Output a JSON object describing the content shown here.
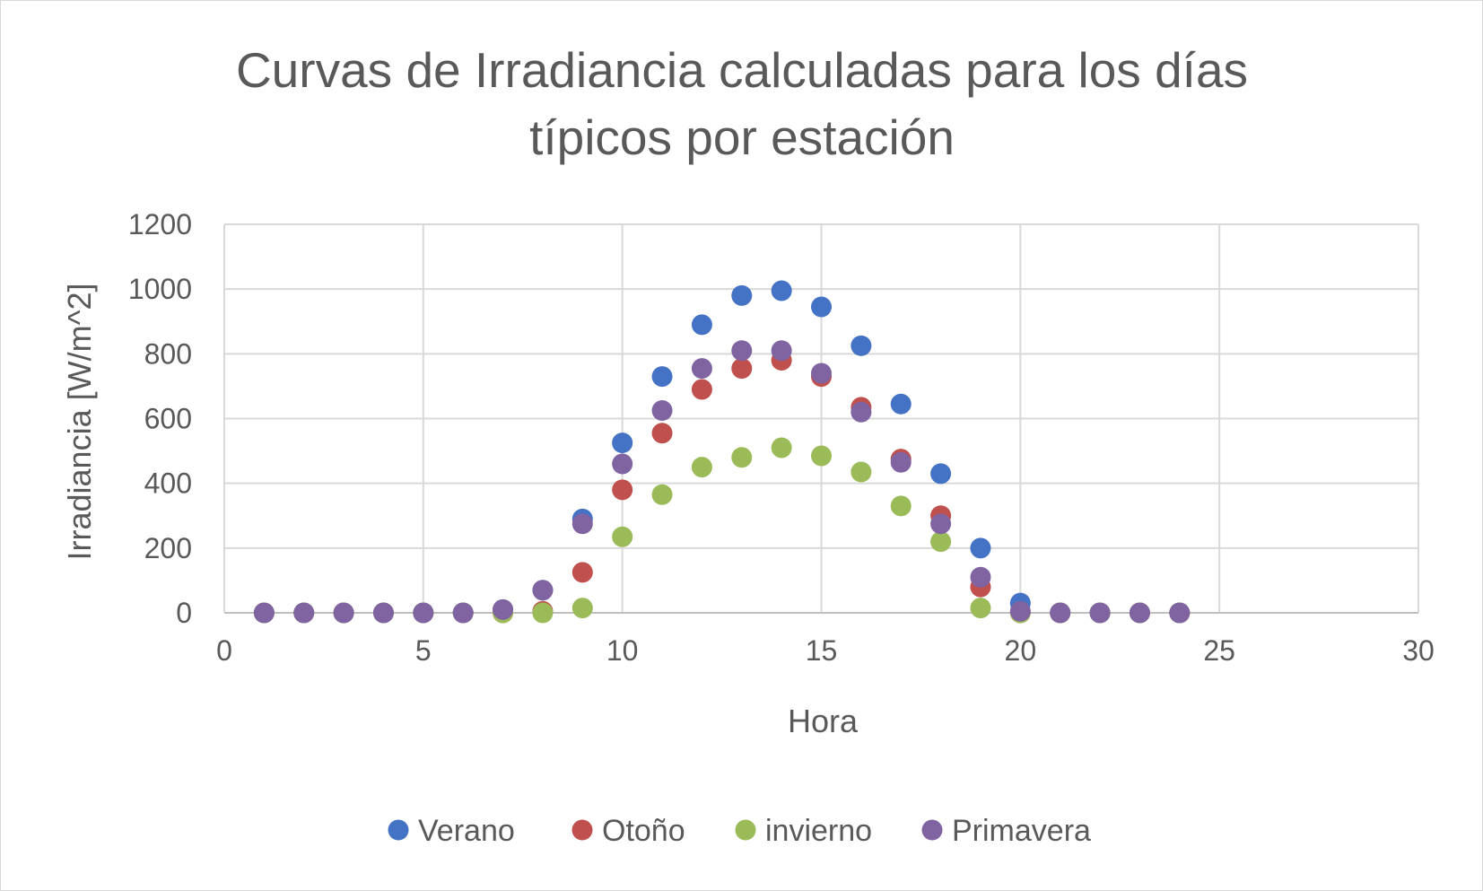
{
  "chart_data": {
    "type": "scatter",
    "title_lines": [
      "Curvas de Irradiancia calculadas para los días",
      "típicos por estación"
    ],
    "xlabel": "Hora",
    "ylabel": "Irradiancia [W/m^2]",
    "xlim": [
      0,
      30
    ],
    "ylim": [
      0,
      1200
    ],
    "xticks": [
      0,
      5,
      10,
      15,
      20,
      25,
      30
    ],
    "yticks": [
      0,
      200,
      400,
      600,
      800,
      1000,
      1200
    ],
    "grid": true,
    "legend_position": "bottom",
    "x": [
      1,
      2,
      3,
      4,
      5,
      6,
      7,
      8,
      9,
      10,
      11,
      12,
      13,
      14,
      15,
      16,
      17,
      18,
      19,
      20,
      21,
      22,
      23,
      24
    ],
    "series": [
      {
        "name": "Verano",
        "color": "#4472c4",
        "values": [
          0,
          0,
          0,
          0,
          0,
          0,
          10,
          70,
          290,
          525,
          730,
          890,
          980,
          995,
          945,
          825,
          645,
          430,
          200,
          30,
          0,
          0,
          0,
          0
        ]
      },
      {
        "name": "Otoño",
        "color": "#c0504d",
        "values": [
          0,
          0,
          0,
          0,
          0,
          0,
          0,
          5,
          125,
          380,
          555,
          690,
          755,
          780,
          730,
          635,
          475,
          300,
          80,
          0,
          0,
          0,
          0,
          0
        ]
      },
      {
        "name": "invierno",
        "color": "#9bbb59",
        "values": [
          0,
          0,
          0,
          0,
          0,
          0,
          0,
          0,
          15,
          235,
          365,
          450,
          480,
          510,
          485,
          435,
          330,
          220,
          15,
          0,
          0,
          0,
          0,
          0
        ]
      },
      {
        "name": "Primavera",
        "color": "#8064a2",
        "values": [
          0,
          0,
          0,
          0,
          0,
          0,
          10,
          70,
          275,
          460,
          625,
          755,
          810,
          810,
          740,
          620,
          465,
          275,
          110,
          5,
          0,
          0,
          0,
          0
        ]
      }
    ]
  }
}
